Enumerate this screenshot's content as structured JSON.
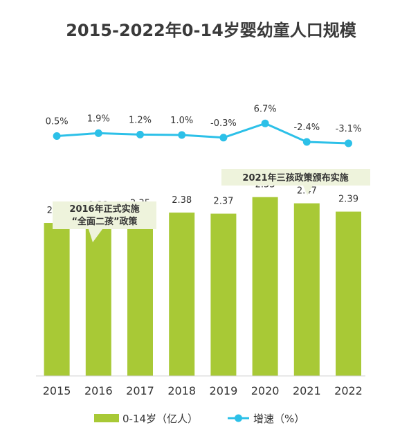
{
  "chart_data": {
    "type": "bar",
    "title": "2015-2022年0-14岁婴幼童人口规模",
    "categories": [
      "2015",
      "2016",
      "2017",
      "2018",
      "2019",
      "2020",
      "2021",
      "2022"
    ],
    "series": [
      {
        "name": "0-14岁（亿人）",
        "type": "bar",
        "color": "#a8c936",
        "values": [
          2.28,
          2.33,
          2.35,
          2.38,
          2.37,
          2.53,
          2.47,
          2.39
        ],
        "labels": [
          "2.28",
          "2.33",
          "2.35",
          "2.38",
          "2.37",
          "2.53",
          "2.47",
          "2.39"
        ]
      },
      {
        "name": "增速（%）",
        "type": "line",
        "color": "#2cc0e8",
        "values": [
          0.5,
          1.9,
          1.2,
          1.0,
          -0.3,
          6.7,
          -2.4,
          -3.1
        ],
        "labels": [
          "0.5%",
          "1.9%",
          "1.2%",
          "1.0%",
          "-0.3%",
          "6.7%",
          "-2.4%",
          "-3.1%"
        ]
      }
    ],
    "annotations": [
      {
        "lines": [
          "2016年正式实施",
          "“全面二孩”政策"
        ],
        "category": "2016"
      },
      {
        "lines": [
          "2021年三孩政策颁布实施"
        ],
        "category": "2021"
      }
    ],
    "legend": "bottom",
    "grid": false
  }
}
